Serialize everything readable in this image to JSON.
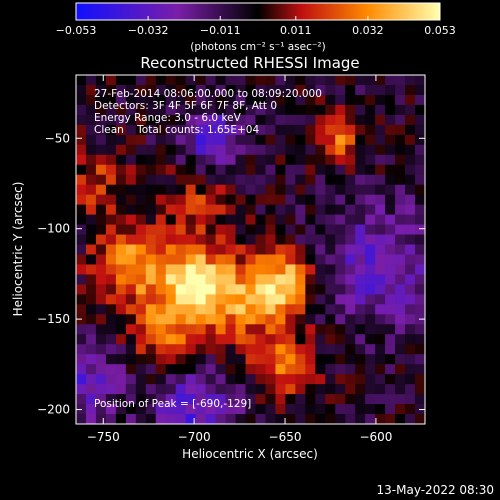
{
  "chart_data": {
    "type": "heatmap",
    "title": "Reconstructed RHESSI Image",
    "xlabel": "Heliocentric X (arcsec)",
    "ylabel": "Heliocentric Y (arcsec)",
    "xlim": [
      -765,
      -573
    ],
    "ylim": [
      -208,
      -15
    ],
    "xticks": [
      -750,
      -700,
      -650,
      -600
    ],
    "yticks": [
      -50,
      -100,
      -150,
      -200
    ],
    "xtick_labels": [
      "−750",
      "−700",
      "−650",
      "−600"
    ],
    "ytick_labels": [
      "−50",
      "−100",
      "−150",
      "−200"
    ],
    "colorbar": {
      "min": -0.053,
      "max": 0.053,
      "ticks": [
        -0.053,
        -0.032,
        -0.011,
        0.011,
        0.032,
        0.053
      ],
      "tick_labels": [
        "−0.053",
        "−0.032",
        "−0.011",
        "0.011",
        "0.032",
        "0.053"
      ],
      "unit_label": "(photons cm⁻² s⁻¹ asec⁻²)",
      "colors": [
        "#1010ff",
        "#7a1ea8",
        "#000000",
        "#c01010",
        "#ff8a00",
        "#ffffb0"
      ]
    },
    "annotations": [
      "27-Feb-2014 08:06:00.000 to 08:09:20.000",
      "Detectors: 3F 4F 5F 6F 7F 8F, Att 0",
      "Energy Range: 3.0 - 6.0 keV",
      "Clean    Total counts: 1.65E+04"
    ],
    "peak_label": "Position of Peak = [-690,-129]",
    "peak": [
      -690,
      -129
    ],
    "sources": [
      {
        "x": -735,
        "y": -120,
        "sigma": 14,
        "amp": 0.04
      },
      {
        "x": -700,
        "y": -130,
        "sigma": 12,
        "amp": 0.053
      },
      {
        "x": -675,
        "y": -140,
        "sigma": 16,
        "amp": 0.036
      },
      {
        "x": -650,
        "y": -130,
        "sigma": 12,
        "amp": 0.044
      },
      {
        "x": -715,
        "y": -155,
        "sigma": 14,
        "amp": 0.03
      },
      {
        "x": -650,
        "y": -175,
        "sigma": 12,
        "amp": 0.03
      },
      {
        "x": -700,
        "y": -90,
        "sigma": 14,
        "amp": 0.02
      },
      {
        "x": -620,
        "y": -50,
        "sigma": 9,
        "amp": 0.03
      },
      {
        "x": -755,
        "y": -75,
        "sigma": 12,
        "amp": 0.022
      },
      {
        "x": -690,
        "y": -50,
        "sigma": 10,
        "amp": -0.04
      },
      {
        "x": -600,
        "y": -120,
        "sigma": 22,
        "amp": -0.028
      },
      {
        "x": -700,
        "y": -200,
        "sigma": 16,
        "amp": -0.03
      },
      {
        "x": -760,
        "y": -185,
        "sigma": 14,
        "amp": -0.025
      }
    ]
  },
  "footer": {
    "date_stamp": "13-May-2022 08:30"
  }
}
